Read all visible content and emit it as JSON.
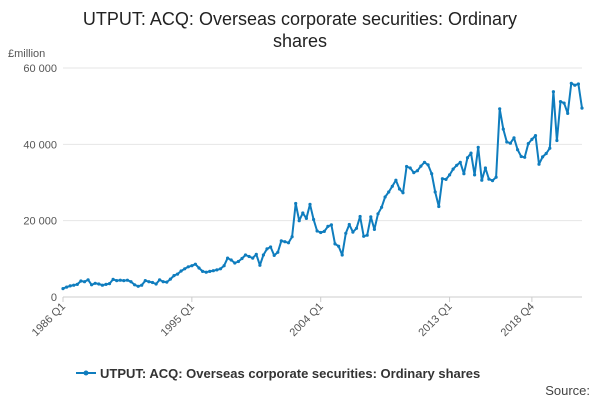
{
  "chart_data": {
    "type": "line",
    "title_line1": "UTPUT: ACQ: Overseas corporate securities: Ordinary",
    "title_line2": "shares",
    "ylabel": "£million",
    "ylim": [
      0,
      60000
    ],
    "yticks": [
      0,
      20000,
      40000,
      60000
    ],
    "ytick_labels": [
      "0",
      "20 000",
      "40 000",
      "60 000"
    ],
    "xtick_labels": [
      "1986 Q1",
      "1995 Q1",
      "2004 Q1",
      "2013 Q1",
      "2018 Q4"
    ],
    "xtick_index": [
      0,
      36,
      72,
      108,
      131
    ],
    "grid": true,
    "legend_position": "bottom",
    "color": "#0f7dbe",
    "source_label": "Source:",
    "series": [
      {
        "name": "UTPUT: ACQ: Overseas corporate securities: Ordinary shares",
        "values": [
          2200,
          2600,
          2900,
          3100,
          3300,
          4200,
          4000,
          4500,
          3200,
          3600,
          3400,
          3100,
          3300,
          3500,
          4600,
          4300,
          4400,
          4300,
          4400,
          4000,
          3200,
          2800,
          3100,
          4300,
          4000,
          3800,
          3400,
          4500,
          4000,
          3900,
          4700,
          5600,
          6000,
          6800,
          7400,
          7900,
          8200,
          8600,
          7600,
          6700,
          6500,
          6700,
          6900,
          7100,
          7400,
          8200,
          10200,
          9700,
          8900,
          9300,
          10100,
          11000,
          10600,
          10200,
          11200,
          8300,
          11000,
          12600,
          13100,
          10900,
          11700,
          14700,
          14500,
          14200,
          15800,
          24500,
          20000,
          22000,
          20600,
          24300,
          20300,
          17300,
          16900,
          17200,
          18500,
          18900,
          13900,
          13300,
          11000,
          16700,
          19000,
          17000,
          18000,
          21100,
          15900,
          16200,
          21000,
          17700,
          21800,
          23500,
          26200,
          27500,
          29000,
          30600,
          28300,
          27300,
          34200,
          33800,
          32600,
          33100,
          34300,
          35300,
          34600,
          32300,
          27500,
          23700,
          31000,
          30800,
          32000,
          33500,
          34500,
          35300,
          32300,
          36500,
          37700,
          32000,
          39200,
          30600,
          33800,
          30900,
          30500,
          31400,
          49300,
          44000,
          40600,
          40300,
          41700,
          38600,
          36800,
          36600,
          40200,
          41300,
          42300,
          34800,
          36700,
          37600,
          39000,
          53800,
          41000,
          51200,
          50800,
          48100,
          56000,
          55500,
          55800,
          49500
        ]
      }
    ]
  }
}
